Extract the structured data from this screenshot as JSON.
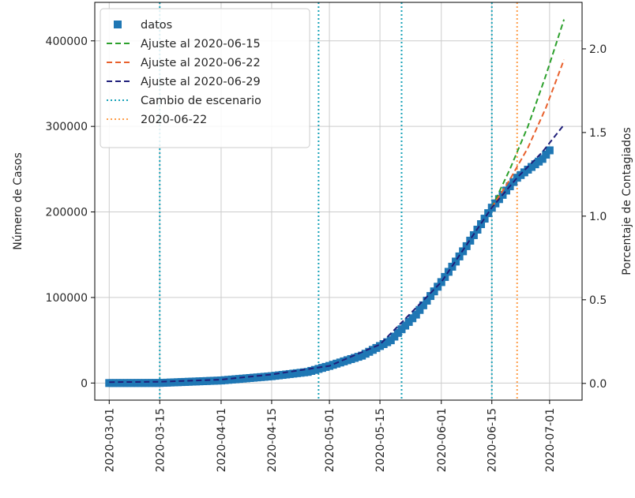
{
  "chart_data": {
    "type": "line",
    "title": "",
    "xlabel": "",
    "ylabel": "Número de Casos",
    "y2label": "Porcentaje de Contagiados",
    "xlim": [
      "2020-02-26",
      "2020-07-10"
    ],
    "ylim": [
      -20000,
      445000
    ],
    "y2lim": [
      -0.1,
      2.278
    ],
    "grid": true,
    "legend_position": "top-left",
    "x_ticks": [
      "2020-03-01",
      "2020-03-15",
      "2020-04-01",
      "2020-04-15",
      "2020-05-01",
      "2020-05-15",
      "2020-06-01",
      "2020-06-15",
      "2020-07-01"
    ],
    "y_ticks": [
      0,
      100000,
      200000,
      300000,
      400000
    ],
    "y_tick_labels": [
      "0",
      "100000",
      "200000",
      "300000",
      "400000"
    ],
    "y2_ticks": [
      0.0,
      0.5,
      1.0,
      1.5,
      2.0
    ],
    "y2_tick_labels": [
      "0.0",
      "0.5",
      "1.0",
      "1.5",
      "2.0"
    ],
    "series": [
      {
        "name": "datos",
        "kind": "scatter",
        "color": "#1f77b4",
        "x": [
          "2020-03-01",
          "2020-03-15",
          "2020-04-01",
          "2020-04-15",
          "2020-04-25",
          "2020-05-01",
          "2020-05-10",
          "2020-05-18",
          "2020-05-25",
          "2020-06-01",
          "2020-06-08",
          "2020-06-15",
          "2020-06-22",
          "2020-06-29",
          "2020-07-01"
        ],
        "y": [
          0,
          100,
          3000,
          8000,
          13000,
          20000,
          32000,
          50000,
          80000,
          118000,
          160000,
          205000,
          240000,
          262000,
          272000
        ]
      },
      {
        "name": "Ajuste al 2020-06-15",
        "kind": "dashed",
        "color": "#2ca02c",
        "x": [
          "2020-06-15",
          "2020-06-20",
          "2020-06-25",
          "2020-06-30",
          "2020-07-05"
        ],
        "y": [
          205000,
          250000,
          300000,
          360000,
          425000
        ]
      },
      {
        "name": "Ajuste al 2020-06-22",
        "kind": "dashed",
        "color": "#e8602c",
        "x": [
          "2020-06-15",
          "2020-06-20",
          "2020-06-25",
          "2020-06-30",
          "2020-07-05"
        ],
        "y": [
          205000,
          238000,
          275000,
          322000,
          378000
        ]
      },
      {
        "name": "Ajuste al 2020-06-29",
        "kind": "dashed",
        "color": "#1f1f7a",
        "x": [
          "2020-03-01",
          "2020-03-15",
          "2020-04-01",
          "2020-04-15",
          "2020-05-01",
          "2020-05-15",
          "2020-06-01",
          "2020-06-15",
          "2020-06-22",
          "2020-06-29",
          "2020-07-05"
        ],
        "y": [
          1000,
          1500,
          4000,
          10000,
          20000,
          45000,
          118000,
          205000,
          240000,
          270000,
          302000
        ]
      }
    ],
    "vlines": [
      {
        "name": "Cambio de escenario",
        "color": "#17a2b8",
        "x": [
          "2020-03-15",
          "2020-04-28",
          "2020-05-21",
          "2020-06-15"
        ]
      },
      {
        "name": "2020-06-22",
        "color": "#ff9e4a",
        "x": [
          "2020-06-22"
        ]
      }
    ]
  }
}
